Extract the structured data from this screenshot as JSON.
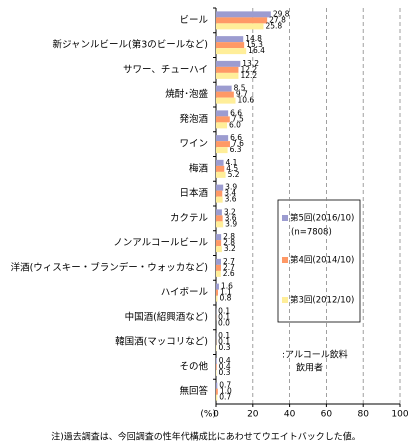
{
  "chart_data": {
    "type": "bar",
    "orientation": "horizontal",
    "categories": [
      "ビール",
      "新ジャンルビール(第3のビールなど)",
      "サワー、チューハイ",
      "焼酎･泡盛",
      "発泡酒",
      "ワイン",
      "梅酒",
      "日本酒",
      "カクテル",
      "ノンアルコールビール",
      "洋酒(ウィスキー・ブランデー・ウォッカなど)",
      "ハイボール",
      "中国酒(紹興酒など)",
      "韓国酒(マッコリなど)",
      "その他",
      "無回答"
    ],
    "series": [
      {
        "name": "第5回(2016/10)",
        "sample_size": "(n=7808)",
        "color": "#9c9cd0",
        "values": [
          29.8,
          14.8,
          13.2,
          8.5,
          6.6,
          6.6,
          4.1,
          3.9,
          3.2,
          2.8,
          2.7,
          1.6,
          0.1,
          0.1,
          0.4,
          0.7
        ],
        "value_labels": [
          "29.8",
          "14.8",
          "13.2",
          "8.5",
          "6.6",
          "6.6",
          "4.1",
          "3.9",
          "3.2",
          "2.8",
          "2.7",
          "1.6",
          "0.1",
          "0.1",
          "0.4",
          "0.7"
        ]
      },
      {
        "name": "第4回(2014/10)",
        "color": "#ff9966",
        "values": [
          27.8,
          15.3,
          12.2,
          9.7,
          7.5,
          7.6,
          4.5,
          3.4,
          3.6,
          2.8,
          2.7,
          1.1,
          0.1,
          0.1,
          0.4,
          1.0
        ],
        "value_labels": [
          "27.8",
          "15.3",
          "12.2",
          "9.7",
          "7.5",
          "7.6",
          "4.5",
          "3.4",
          "3.6",
          "2.8",
          "2.7",
          "1.1",
          "0.1",
          "0.1",
          "0.4",
          "1.0"
        ]
      },
      {
        "name": "第3回(2012/10)",
        "color": "#ffee99",
        "values": [
          25.8,
          16.4,
          12.2,
          10.6,
          6.0,
          6.3,
          5.2,
          3.6,
          3.9,
          3.2,
          2.6,
          0.8,
          0.0,
          0.3,
          0.3,
          0.7
        ],
        "value_labels": [
          "25.8",
          "16.4",
          "12.2",
          "10.6",
          "6.0",
          "6.3",
          "5.2",
          "3.6",
          "3.9",
          "3.2",
          "2.6",
          "0.8",
          "0.0",
          "0.3",
          "0.3",
          "0.7"
        ]
      }
    ],
    "xlim": [
      0,
      100
    ],
    "xticks": [
      0,
      20,
      40,
      60,
      80,
      100
    ],
    "grid": true,
    "x_label": "(%)",
    "annotation": [
      ":アルコール飲料",
      "飲用者"
    ],
    "note": "注)過去調査は、今回調査の性年代構成比にあわせてウエイトバックした値。"
  }
}
